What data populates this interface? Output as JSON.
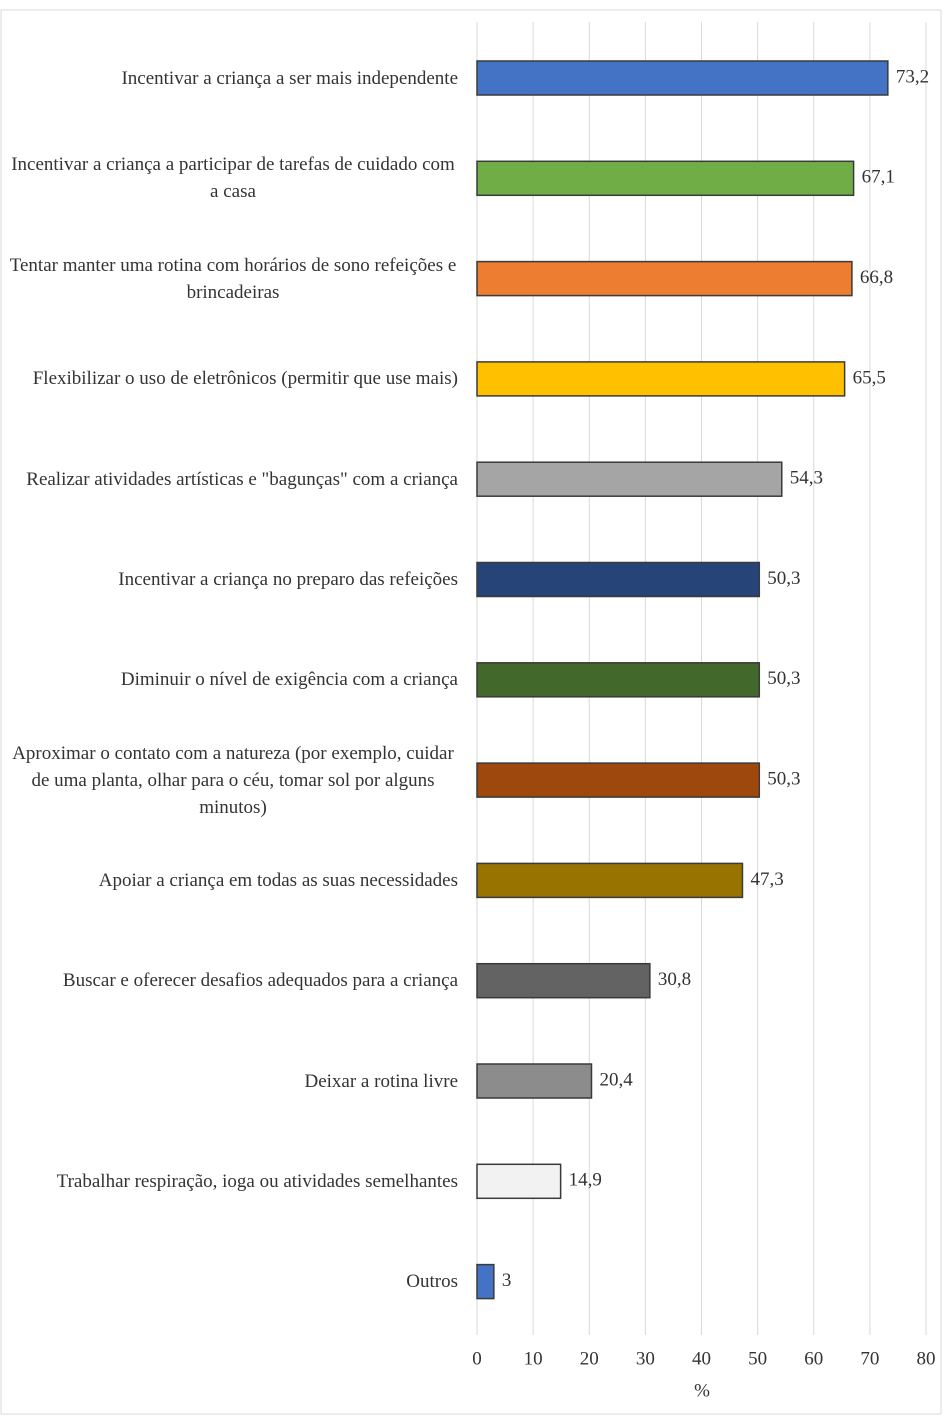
{
  "chart_data": {
    "type": "barh",
    "categories": [
      "Incentivar a criança a ser mais independente",
      "Incentivar a criança a participar de tarefas de cuidado com a casa",
      "Tentar manter uma rotina com horários de sono refeições e brincadeiras",
      "Flexibilizar o uso de eletrônicos (permitir que use mais)",
      "Realizar atividades artísticas e \"bagunças\" com a criança",
      "Incentivar a criança no preparo das refeições",
      "Diminuir o nível de exigência com a criança",
      "Aproximar o contato com a natureza (por exemplo, cuidar de uma planta, olhar para o céu, tomar sol por alguns minutos)",
      "Apoiar a criança em todas as suas necessidades",
      "Buscar e oferecer desafios adequados para a criança",
      "Deixar a rotina livre",
      "Trabalhar respiração, ioga ou atividades semelhantes",
      "Outros"
    ],
    "values": [
      73.2,
      67.1,
      66.8,
      65.5,
      54.3,
      50.3,
      50.3,
      50.3,
      47.3,
      30.8,
      20.4,
      14.9,
      3
    ],
    "value_labels": [
      "73,2",
      "67,1",
      "66,8",
      "65,5",
      "54,3",
      "50,3",
      "50,3",
      "50,3",
      "47,3",
      "30,8",
      "20,4",
      "14,9",
      "3"
    ],
    "colors": [
      "#4472c4",
      "#70ad47",
      "#ed7d31",
      "#ffc000",
      "#a5a5a5",
      "#264478",
      "#43682b",
      "#9e480e",
      "#997300",
      "#636363",
      "#8c8c8c",
      "#f2f2f2",
      "#4472c4"
    ],
    "xlabel": "%",
    "xlim": [
      0,
      80
    ],
    "xticks": [
      0,
      10,
      20,
      30,
      40,
      50,
      60,
      70,
      80
    ],
    "grid": true
  }
}
